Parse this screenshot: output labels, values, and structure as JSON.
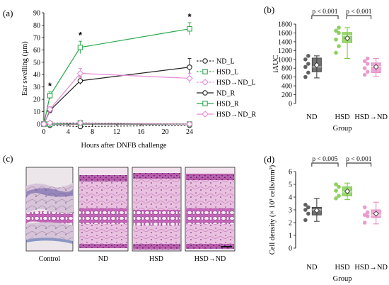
{
  "panels": {
    "a": "(a)",
    "b": "(b)",
    "c": "(c)",
    "d": "(d)"
  },
  "chart_data": [
    {
      "id": "a",
      "type": "line",
      "xlabel": "Hours after DNFB challenge",
      "ylabel": "Ear swelling (µm)",
      "xlim": [
        0,
        24
      ],
      "ylim": [
        0,
        90
      ],
      "x_ticks": [
        "0",
        "4",
        "8",
        "12",
        "16",
        "20",
        "24"
      ],
      "y_ticks": [
        "0",
        "10",
        "20",
        "30",
        "40",
        "50",
        "60",
        "70",
        "80",
        "90"
      ],
      "x": [
        0,
        1,
        6,
        24
      ],
      "series": [
        {
          "name": "ND_L",
          "color": "#222222",
          "dash": true,
          "marker": "circle",
          "values": [
            0,
            -1,
            -2,
            -1
          ],
          "err": [
            0,
            1,
            1,
            1
          ]
        },
        {
          "name": "HSD_L",
          "color": "#2aa84a",
          "dash": true,
          "marker": "square",
          "values": [
            0,
            0,
            1,
            0
          ],
          "err": [
            0,
            1,
            1,
            1
          ]
        },
        {
          "name": "HSD→ND_L",
          "color": "#e58ad4",
          "dash": true,
          "marker": "diamond",
          "values": [
            0,
            1,
            1,
            0
          ],
          "err": [
            0,
            1,
            1,
            1
          ]
        },
        {
          "name": "ND_R",
          "color": "#222222",
          "dash": false,
          "marker": "circle",
          "values": [
            0,
            11,
            35,
            46
          ],
          "err": [
            0,
            2,
            3,
            7
          ]
        },
        {
          "name": "HSD_R",
          "color": "#2aa84a",
          "dash": false,
          "marker": "square",
          "values": [
            0,
            23,
            62,
            77
          ],
          "err": [
            0,
            3,
            5,
            5
          ]
        },
        {
          "name": "HSD→ND_R",
          "color": "#e58ad4",
          "dash": false,
          "marker": "diamond",
          "values": [
            0,
            12,
            41,
            37
          ],
          "err": [
            0,
            2,
            4,
            4
          ]
        }
      ],
      "significance": [
        {
          "x": 1,
          "label": "*"
        },
        {
          "x": 6,
          "label": "*"
        },
        {
          "x": 24,
          "label": "*"
        }
      ]
    },
    {
      "id": "b",
      "type": "box",
      "ylabel": "iAUC",
      "xlabel": "Group",
      "ylim": [
        0,
        1800
      ],
      "y_ticks": [
        "0",
        "200",
        "400",
        "600",
        "800",
        "1000",
        "1200",
        "1400",
        "1600",
        "1800"
      ],
      "categories": [
        "ND",
        "HSD",
        "HSD→ND"
      ],
      "colors": [
        "#444444",
        "#7ac943",
        "#e88bc4"
      ],
      "boxes": [
        {
          "min": 580,
          "q1": 720,
          "median": 830,
          "q3": 1030,
          "max": 1080,
          "mean": 870,
          "points": [
            600,
            700,
            830,
            900,
            1000,
            1080
          ]
        },
        {
          "min": 1020,
          "q1": 1380,
          "median": 1540,
          "q3": 1610,
          "max": 1720,
          "mean": 1480,
          "points": [
            1150,
            1300,
            1450,
            1600,
            1650,
            1720
          ]
        },
        {
          "min": 610,
          "q1": 700,
          "median": 840,
          "q3": 920,
          "max": 1020,
          "mean": 830,
          "points": [
            650,
            720,
            800,
            900,
            960,
            1020
          ]
        }
      ],
      "comparisons": [
        {
          "from": 0,
          "to": 1,
          "label": "p < 0.001"
        },
        {
          "from": 1,
          "to": 2,
          "label": "p < 0.001"
        }
      ]
    },
    {
      "id": "d",
      "type": "box",
      "ylabel": "Cell density (× 10³ cells/mm²)",
      "xlabel": "Group",
      "ylim": [
        0,
        6
      ],
      "y_ticks": [
        "0",
        "1",
        "2",
        "3",
        "4",
        "5",
        "6"
      ],
      "categories": [
        "ND",
        "HSD",
        "HSD→ND"
      ],
      "colors": [
        "#444444",
        "#7ac943",
        "#e88bc4"
      ],
      "boxes": [
        {
          "min": 2.1,
          "q1": 2.6,
          "median": 3.0,
          "q3": 3.2,
          "max": 3.9,
          "mean": 2.95,
          "points": [
            2.2,
            2.7,
            3.0,
            3.2,
            3.4
          ]
        },
        {
          "min": 3.8,
          "q1": 4.1,
          "median": 4.4,
          "q3": 4.8,
          "max": 5.1,
          "mean": 4.45,
          "points": [
            3.9,
            4.1,
            4.5,
            4.8,
            5.0
          ]
        },
        {
          "min": 1.9,
          "q1": 2.4,
          "median": 2.6,
          "q3": 3.0,
          "max": 3.6,
          "mean": 2.7,
          "points": [
            2.0,
            2.5,
            2.6,
            2.8,
            3.2
          ]
        }
      ],
      "comparisons": [
        {
          "from": 0,
          "to": 1,
          "label": "p < 0.005"
        },
        {
          "from": 1,
          "to": 2,
          "label": "p < 0.001"
        }
      ]
    }
  ],
  "histology": {
    "labels": [
      "Control",
      "ND",
      "HSD",
      "HSD→ND"
    ]
  }
}
